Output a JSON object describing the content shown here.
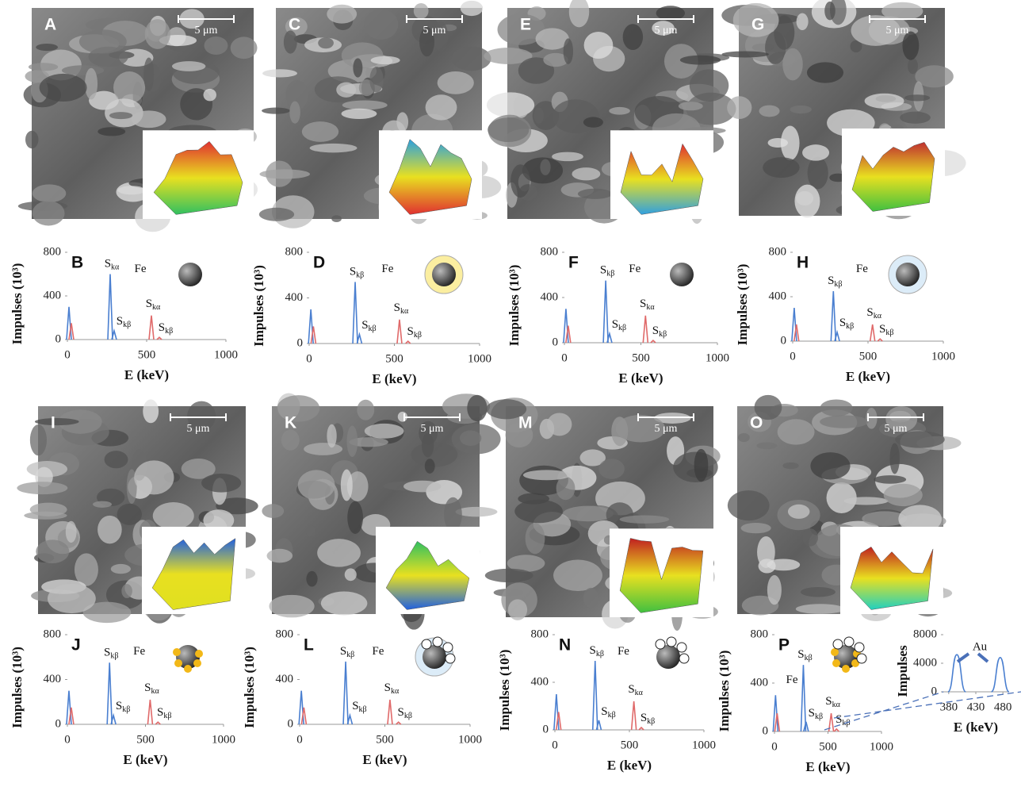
{
  "images": [
    {
      "label": "A",
      "scale": "5 μm"
    },
    {
      "label": "C",
      "scale": "5 μm"
    },
    {
      "label": "E",
      "scale": "5 μm"
    },
    {
      "label": "G",
      "scale": "5 μm"
    },
    {
      "label": "I",
      "scale": "5 μm"
    },
    {
      "label": "K",
      "scale": "5 μm"
    },
    {
      "label": "M",
      "scale": "5 μm"
    },
    {
      "label": "O",
      "scale": "5 μm"
    }
  ],
  "chart_data": [
    {
      "type": "spectrum",
      "label": "B",
      "ylabel": "Impulses (10³)",
      "xlabel": "E (keV)",
      "xlim": [
        0,
        1000
      ],
      "ylim": [
        0,
        800
      ],
      "xticks": [
        0,
        500,
        1000
      ],
      "yticks": [
        0,
        400,
        800
      ],
      "series": [
        {
          "color": "#4a7fd0",
          "x": [
            10,
            270,
            295
          ],
          "values": [
            300,
            600,
            80
          ]
        },
        {
          "color": "#e06a6a",
          "x": [
            25,
            530,
            580
          ],
          "values": [
            150,
            220,
            20
          ]
        }
      ],
      "annotations": [
        {
          "text": "S",
          "sub": "kα"
        },
        {
          "text": "Fe"
        },
        {
          "text": "S",
          "sub": "kβ"
        },
        {
          "text": "S",
          "sub": "kα"
        },
        {
          "text": "S",
          "sub": "kβ"
        }
      ]
    },
    {
      "type": "spectrum",
      "label": "D",
      "ylabel": "Impulses (10³)",
      "xlabel": "E (keV)",
      "xlim": [
        0,
        1000
      ],
      "ylim": [
        0,
        800
      ],
      "xticks": [
        0,
        500,
        1000
      ],
      "yticks": [
        0,
        400,
        800
      ],
      "series": [
        {
          "color": "#4a7fd0",
          "x": [
            10,
            270,
            295
          ],
          "values": [
            300,
            540,
            80
          ]
        },
        {
          "color": "#e06a6a",
          "x": [
            25,
            530,
            580
          ],
          "values": [
            150,
            210,
            20
          ]
        }
      ],
      "annotations": [
        {
          "text": "S",
          "sub": "kβ"
        },
        {
          "text": "Fe"
        },
        {
          "text": "S",
          "sub": "kβ"
        },
        {
          "text": "S",
          "sub": "kα"
        },
        {
          "text": "S",
          "sub": "kβ"
        }
      ]
    },
    {
      "type": "spectrum",
      "label": "F",
      "ylabel": "Impulses (10³)",
      "xlabel": "E (keV)",
      "xlim": [
        0,
        1000
      ],
      "ylim": [
        0,
        800
      ],
      "xticks": [
        0,
        500,
        1000
      ],
      "yticks": [
        0,
        400,
        800
      ],
      "series": [
        {
          "color": "#4a7fd0",
          "x": [
            10,
            270,
            295
          ],
          "values": [
            300,
            550,
            80
          ]
        },
        {
          "color": "#e06a6a",
          "x": [
            25,
            530,
            580
          ],
          "values": [
            150,
            240,
            20
          ]
        }
      ],
      "annotations": [
        {
          "text": "S",
          "sub": "kβ"
        },
        {
          "text": "Fe"
        },
        {
          "text": "S",
          "sub": "kβ"
        },
        {
          "text": "S",
          "sub": "kα"
        },
        {
          "text": "S",
          "sub": "kβ"
        }
      ]
    },
    {
      "type": "spectrum",
      "label": "H",
      "ylabel": "Impulses (10³)",
      "xlabel": "E (keV)",
      "xlim": [
        0,
        1000
      ],
      "ylim": [
        0,
        800
      ],
      "xticks": [
        0,
        500,
        1000
      ],
      "yticks": [
        0,
        400,
        800
      ],
      "series": [
        {
          "color": "#4a7fd0",
          "x": [
            10,
            270,
            295
          ],
          "values": [
            300,
            450,
            80
          ]
        },
        {
          "color": "#e06a6a",
          "x": [
            25,
            530,
            580
          ],
          "values": [
            150,
            150,
            20
          ]
        }
      ],
      "annotations": [
        {
          "text": "S",
          "sub": "kβ"
        },
        {
          "text": "Fe"
        },
        {
          "text": "S",
          "sub": "kβ"
        },
        {
          "text": "S",
          "sub": "kα"
        },
        {
          "text": "S",
          "sub": "kβ"
        }
      ]
    },
    {
      "type": "spectrum",
      "label": "J",
      "ylabel": "Impulses (10³)",
      "xlabel": "E (keV)",
      "xlim": [
        0,
        1000
      ],
      "ylim": [
        0,
        800
      ],
      "xticks": [
        0,
        500,
        1000
      ],
      "yticks": [
        0,
        400,
        800
      ],
      "series": [
        {
          "color": "#4a7fd0",
          "x": [
            10,
            270,
            295
          ],
          "values": [
            300,
            550,
            80
          ]
        },
        {
          "color": "#e06a6a",
          "x": [
            25,
            530,
            580
          ],
          "values": [
            150,
            220,
            20
          ]
        }
      ],
      "annotations": [
        {
          "text": "S",
          "sub": "kβ"
        },
        {
          "text": "Fe"
        },
        {
          "text": "S",
          "sub": "kβ"
        },
        {
          "text": "S",
          "sub": "kα"
        },
        {
          "text": "S",
          "sub": "kβ"
        }
      ]
    },
    {
      "type": "spectrum",
      "label": "L",
      "ylabel": "Impulses (10³)",
      "xlabel": "E (keV)",
      "xlim": [
        0,
        1000
      ],
      "ylim": [
        0,
        800
      ],
      "xticks": [
        0,
        500,
        1000
      ],
      "yticks": [
        0,
        400,
        800
      ],
      "series": [
        {
          "color": "#4a7fd0",
          "x": [
            10,
            270,
            295
          ],
          "values": [
            300,
            560,
            80
          ]
        },
        {
          "color": "#e06a6a",
          "x": [
            25,
            530,
            580
          ],
          "values": [
            150,
            220,
            20
          ]
        }
      ],
      "annotations": [
        {
          "text": "S",
          "sub": "kβ"
        },
        {
          "text": "Fe"
        },
        {
          "text": "S",
          "sub": "kβ"
        },
        {
          "text": "S",
          "sub": "kα"
        },
        {
          "text": "S",
          "sub": "kβ"
        }
      ]
    },
    {
      "type": "spectrum",
      "label": "N",
      "ylabel": "Impulses (10³)",
      "xlabel": "E (keV)",
      "xlim": [
        0,
        1000
      ],
      "ylim": [
        0,
        800
      ],
      "xticks": [
        0,
        500,
        1000
      ],
      "yticks": [
        0,
        400,
        800
      ],
      "series": [
        {
          "color": "#4a7fd0",
          "x": [
            10,
            270,
            295
          ],
          "values": [
            300,
            580,
            80
          ]
        },
        {
          "color": "#e06a6a",
          "x": [
            25,
            530,
            580
          ],
          "values": [
            150,
            240,
            20
          ]
        }
      ],
      "annotations": [
        {
          "text": "S",
          "sub": "kβ"
        },
        {
          "text": "Fe"
        },
        {
          "text": "S",
          "sub": "kβ"
        },
        {
          "text": "S",
          "sub": "kα"
        },
        {
          "text": "S",
          "sub": "kβ"
        }
      ]
    },
    {
      "type": "spectrum",
      "label": "P",
      "ylabel": "Impulses (10³)",
      "xlabel": "E (keV)",
      "xlim": [
        0,
        1000
      ],
      "ylim": [
        0,
        800
      ],
      "xticks": [
        0,
        500,
        1000
      ],
      "yticks": [
        0,
        400,
        800
      ],
      "series": [
        {
          "color": "#4a7fd0",
          "x": [
            10,
            270,
            295
          ],
          "values": [
            300,
            550,
            80
          ]
        },
        {
          "color": "#e06a6a",
          "x": [
            25,
            530,
            580
          ],
          "values": [
            150,
            150,
            20
          ]
        }
      ],
      "annotations": [
        {
          "text": "S",
          "sub": "kβ"
        },
        {
          "text": "Fe"
        },
        {
          "text": "S",
          "sub": "kβ"
        },
        {
          "text": "S",
          "sub": "kα"
        },
        {
          "text": "S",
          "sub": "kβ"
        }
      ]
    },
    {
      "type": "spectrum",
      "ylabel": "Impulses",
      "xlabel": "E (keV)",
      "xlim": [
        370,
        490
      ],
      "ylim": [
        0,
        8000
      ],
      "xticks": [
        380,
        430,
        480
      ],
      "yticks": [
        0,
        4000,
        8000
      ],
      "series": [
        {
          "color": "#4a7fd0",
          "x": [
            395,
            475
          ],
          "values": [
            5200,
            4800
          ]
        }
      ],
      "annotations": [
        {
          "text": "Au"
        }
      ]
    }
  ]
}
